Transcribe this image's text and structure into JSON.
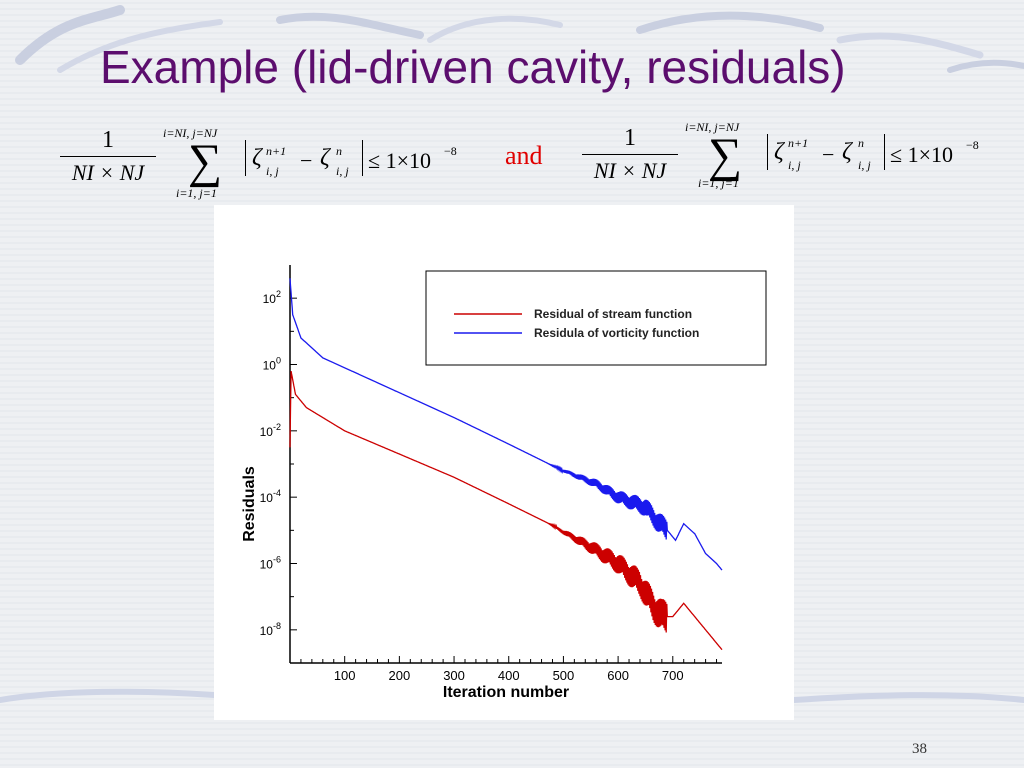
{
  "slide": {
    "title": "Example (lid-driven cavity, residuals)",
    "page_number": "38",
    "conjunction": "and",
    "conjunction_color": "#e00000",
    "title_color": "#5c0e6e"
  },
  "equation": {
    "numerator": "1",
    "denominator": "NI × NJ",
    "upper_limit": "i=NI, j=NJ",
    "lower_limit": "i=1, j=1",
    "symbol": "ζ",
    "sup_new": "n+1",
    "sup_old": "n",
    "subscript": "i, j",
    "minus": "−",
    "rhs": "≤ 1×10",
    "rhs_exponent": "−8"
  },
  "chart_data": {
    "type": "line",
    "xlabel": "Iteration number",
    "ylabel": "Residuals",
    "xlim": [
      0,
      790
    ],
    "x_ticks": [
      100,
      200,
      300,
      400,
      500,
      600,
      700
    ],
    "y_scale": "log",
    "ylim": [
      1e-09,
      1000
    ],
    "y_tick_labels": [
      {
        "base": "10",
        "exp": "2",
        "value": 2
      },
      {
        "base": "10",
        "exp": "0",
        "value": 0
      },
      {
        "base": "10",
        "exp": "-2",
        "value": -2
      },
      {
        "base": "10",
        "exp": "-4",
        "value": -4
      },
      {
        "base": "10",
        "exp": "-6",
        "value": -6
      },
      {
        "base": "10",
        "exp": "-8",
        "value": -8
      }
    ],
    "legend_position": "top-right",
    "series": [
      {
        "name": "Residual of stream function",
        "color": "#cc0000",
        "log10_values": [
          [
            0,
            -2.5
          ],
          [
            2,
            -0.2
          ],
          [
            10,
            -0.9
          ],
          [
            30,
            -1.3
          ],
          [
            60,
            -1.6
          ],
          [
            100,
            -2.0
          ],
          [
            200,
            -2.7
          ],
          [
            300,
            -3.4
          ],
          [
            400,
            -4.2
          ],
          [
            480,
            -4.85
          ],
          [
            500,
            -5.05
          ],
          [
            560,
            -5.6
          ],
          [
            600,
            -6.0
          ],
          [
            640,
            -6.6
          ],
          [
            665,
            -7.3
          ],
          [
            680,
            -7.6
          ],
          [
            700,
            -7.6
          ],
          [
            720,
            -7.2
          ],
          [
            740,
            -7.6
          ],
          [
            760,
            -8.0
          ],
          [
            790,
            -8.6
          ]
        ]
      },
      {
        "name": "Residula of vorticity function",
        "color": "#1a1aee",
        "log10_values": [
          [
            0,
            2.6
          ],
          [
            5,
            1.5
          ],
          [
            20,
            0.8
          ],
          [
            60,
            0.2
          ],
          [
            100,
            -0.1
          ],
          [
            200,
            -0.85
          ],
          [
            300,
            -1.6
          ],
          [
            400,
            -2.4
          ],
          [
            480,
            -3.05
          ],
          [
            500,
            -3.2
          ],
          [
            560,
            -3.6
          ],
          [
            600,
            -4.0
          ],
          [
            650,
            -4.3
          ],
          [
            670,
            -4.7
          ],
          [
            690,
            -5.0
          ],
          [
            705,
            -5.3
          ],
          [
            720,
            -4.8
          ],
          [
            740,
            -5.1
          ],
          [
            760,
            -5.7
          ],
          [
            780,
            -6.0
          ],
          [
            790,
            -6.2
          ]
        ]
      }
    ]
  }
}
